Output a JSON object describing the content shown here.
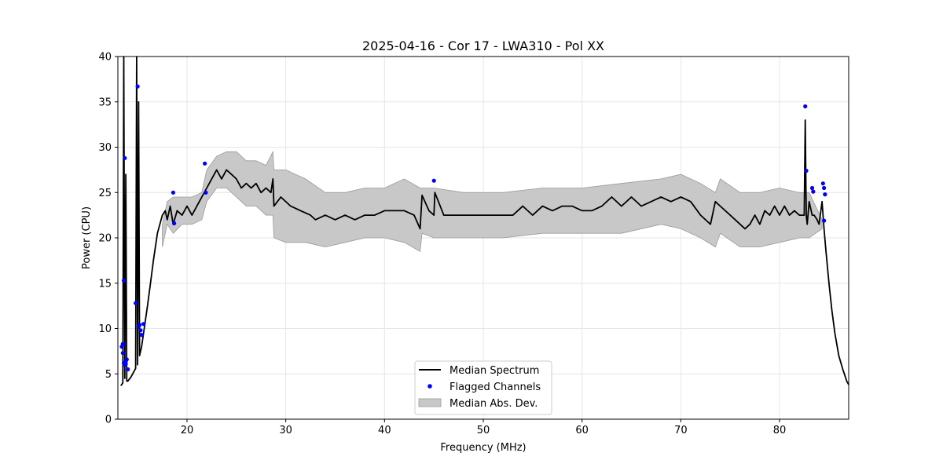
{
  "chart_data": {
    "type": "line",
    "title": "2025-04-16 - Cor 17 - LWA310 - Pol XX",
    "xlabel": "Frequency (MHz)",
    "ylabel": "Power (CPU)",
    "xlim": [
      13.0,
      87.0
    ],
    "ylim": [
      0,
      40
    ],
    "xticks": [
      20,
      30,
      40,
      50,
      60,
      70,
      80
    ],
    "yticks": [
      0,
      5,
      10,
      15,
      20,
      25,
      30,
      35,
      40
    ],
    "grid": true,
    "legend": {
      "position": "bottom-center",
      "entries": [
        "Median Spectrum",
        "Flagged Channels",
        "Median Abs. Dev."
      ]
    },
    "colors": {
      "median": "#000000",
      "flagged": "#0000ff",
      "mad_fill": "#c8c8c8",
      "mad_edge": "#9a9a9a",
      "grid": "#e6e6e6"
    },
    "series": [
      {
        "name": "Median Spectrum",
        "x": [
          13.3,
          13.5,
          13.6,
          13.7,
          13.8,
          13.9,
          14.0,
          14.3,
          14.6,
          14.8,
          14.9,
          15.0,
          15.1,
          15.2,
          15.4,
          15.6,
          15.8,
          16.0,
          16.3,
          16.6,
          17.0,
          17.5,
          17.8,
          18.0,
          18.3,
          18.6,
          19.0,
          19.5,
          20.0,
          20.5,
          21.0,
          21.5,
          22.0,
          22.5,
          23.0,
          23.5,
          24.0,
          24.5,
          25.0,
          25.5,
          26.0,
          26.5,
          27.0,
          27.5,
          28.0,
          28.5,
          28.7,
          28.8,
          29.5,
          30.5,
          31.5,
          32.5,
          33.0,
          34.0,
          35.0,
          36.0,
          37.0,
          38.0,
          39.0,
          40.0,
          41.0,
          42.0,
          43.0,
          43.6,
          43.8,
          44.5,
          45.0,
          45.1,
          46.0,
          47.0,
          48.0,
          49.0,
          50.0,
          51.0,
          52.0,
          53.0,
          54.0,
          55.0,
          56.0,
          57.0,
          58.0,
          59.0,
          60.0,
          61.0,
          62.0,
          63.0,
          64.0,
          65.0,
          66.0,
          67.0,
          68.0,
          69.0,
          70.0,
          71.0,
          72.0,
          73.0,
          73.5,
          74.0,
          75.0,
          76.0,
          76.5,
          77.0,
          77.5,
          78.0,
          78.5,
          79.0,
          79.5,
          80.0,
          80.5,
          81.0,
          81.5,
          82.0,
          82.5,
          82.6,
          82.7,
          82.8,
          83.0,
          83.3,
          83.5,
          83.8,
          84.0,
          84.3,
          84.5,
          84.7,
          85.0,
          85.3,
          85.6,
          86.0,
          86.4,
          86.8,
          87.0
        ],
        "values": [
          3.7,
          4.0,
          40.0,
          4.5,
          27.0,
          4.2,
          4.2,
          4.6,
          5.2,
          5.6,
          40.0,
          6.0,
          35.0,
          7.0,
          8.0,
          9.5,
          11.0,
          12.5,
          15.0,
          17.5,
          20.5,
          22.5,
          23.0,
          22.0,
          23.5,
          21.5,
          23.0,
          22.5,
          23.5,
          22.5,
          23.5,
          24.5,
          25.5,
          26.5,
          27.5,
          26.5,
          27.5,
          27.0,
          26.5,
          25.5,
          26.0,
          25.5,
          26.0,
          25.0,
          25.5,
          25.0,
          26.5,
          23.5,
          24.5,
          23.5,
          23.0,
          22.5,
          22.0,
          22.5,
          22.0,
          22.5,
          22.0,
          22.5,
          22.5,
          23.0,
          23.0,
          23.0,
          22.5,
          21.0,
          24.7,
          23.0,
          22.5,
          25.0,
          22.5,
          22.5,
          22.5,
          22.5,
          22.5,
          22.5,
          22.5,
          22.5,
          23.5,
          22.5,
          23.5,
          23.0,
          23.5,
          23.5,
          23.0,
          23.0,
          23.5,
          24.5,
          23.5,
          24.5,
          23.5,
          24.0,
          24.5,
          24.0,
          24.5,
          24.0,
          22.5,
          21.5,
          24.0,
          23.5,
          22.5,
          21.5,
          21.0,
          21.5,
          22.5,
          21.5,
          23.0,
          22.5,
          23.5,
          22.5,
          23.5,
          22.5,
          23.0,
          22.5,
          22.5,
          33.0,
          22.5,
          21.5,
          24.0,
          22.5,
          22.5,
          22.0,
          21.5,
          24.0,
          21.0,
          18.5,
          15.0,
          12.0,
          9.5,
          7.0,
          5.5,
          4.2,
          3.8
        ]
      },
      {
        "name": "Median Abs. Dev.",
        "x": [
          17.5,
          18.0,
          18.6,
          19.5,
          20.5,
          21.5,
          22.0,
          23.0,
          24.0,
          25.0,
          26.0,
          27.0,
          28.0,
          28.7,
          28.8,
          30.0,
          32.0,
          34.0,
          36.0,
          38.0,
          40.0,
          42.0,
          43.6,
          43.8,
          45.0,
          48.0,
          52.0,
          56.0,
          60.0,
          64.0,
          68.0,
          70.0,
          72.0,
          73.5,
          74.0,
          76.0,
          78.0,
          80.0,
          82.0,
          83.0,
          84.3
        ],
        "upper": [
          21.5,
          24.0,
          24.5,
          24.5,
          24.5,
          25.0,
          27.5,
          29.0,
          29.5,
          29.5,
          28.5,
          28.5,
          28.0,
          29.5,
          27.5,
          27.5,
          26.5,
          25.0,
          25.0,
          25.5,
          25.5,
          26.5,
          25.5,
          25.5,
          25.5,
          25.0,
          25.0,
          25.5,
          25.5,
          26.0,
          26.5,
          27.0,
          26.0,
          25.0,
          26.5,
          25.0,
          25.0,
          25.5,
          25.0,
          25.0,
          22.0
        ],
        "lower": [
          19.0,
          21.5,
          20.5,
          21.5,
          21.5,
          22.0,
          24.0,
          25.5,
          25.5,
          24.5,
          23.5,
          23.5,
          22.5,
          22.5,
          20.0,
          19.5,
          19.5,
          19.0,
          19.5,
          20.0,
          20.0,
          19.5,
          18.5,
          20.5,
          20.0,
          20.0,
          20.0,
          20.5,
          20.5,
          20.5,
          21.5,
          21.0,
          20.0,
          19.0,
          20.5,
          19.0,
          19.0,
          19.5,
          20.0,
          20.0,
          21.0
        ]
      }
    ],
    "flagged_channels": {
      "name": "Flagged Channels",
      "x": [
        13.4,
        13.5,
        13.5,
        13.6,
        13.6,
        13.7,
        13.7,
        13.8,
        13.8,
        13.9,
        14.0,
        14.8,
        15.0,
        15.1,
        15.2,
        15.3,
        15.4,
        15.6,
        18.6,
        18.7,
        21.8,
        21.9,
        45.0,
        82.6,
        82.7,
        83.3,
        83.4,
        84.4,
        84.5,
        84.6,
        84.5
      ],
      "values": [
        8.0,
        8.3,
        7.3,
        15.3,
        6.2,
        28.8,
        6.0,
        6.4,
        6.1,
        6.6,
        5.5,
        12.8,
        36.7,
        10.2,
        10.4,
        9.8,
        9.3,
        10.5,
        25.0,
        21.6,
        28.2,
        25.0,
        26.3,
        34.5,
        27.4,
        25.5,
        25.1,
        26.0,
        25.5,
        24.8,
        21.9
      ]
    }
  }
}
